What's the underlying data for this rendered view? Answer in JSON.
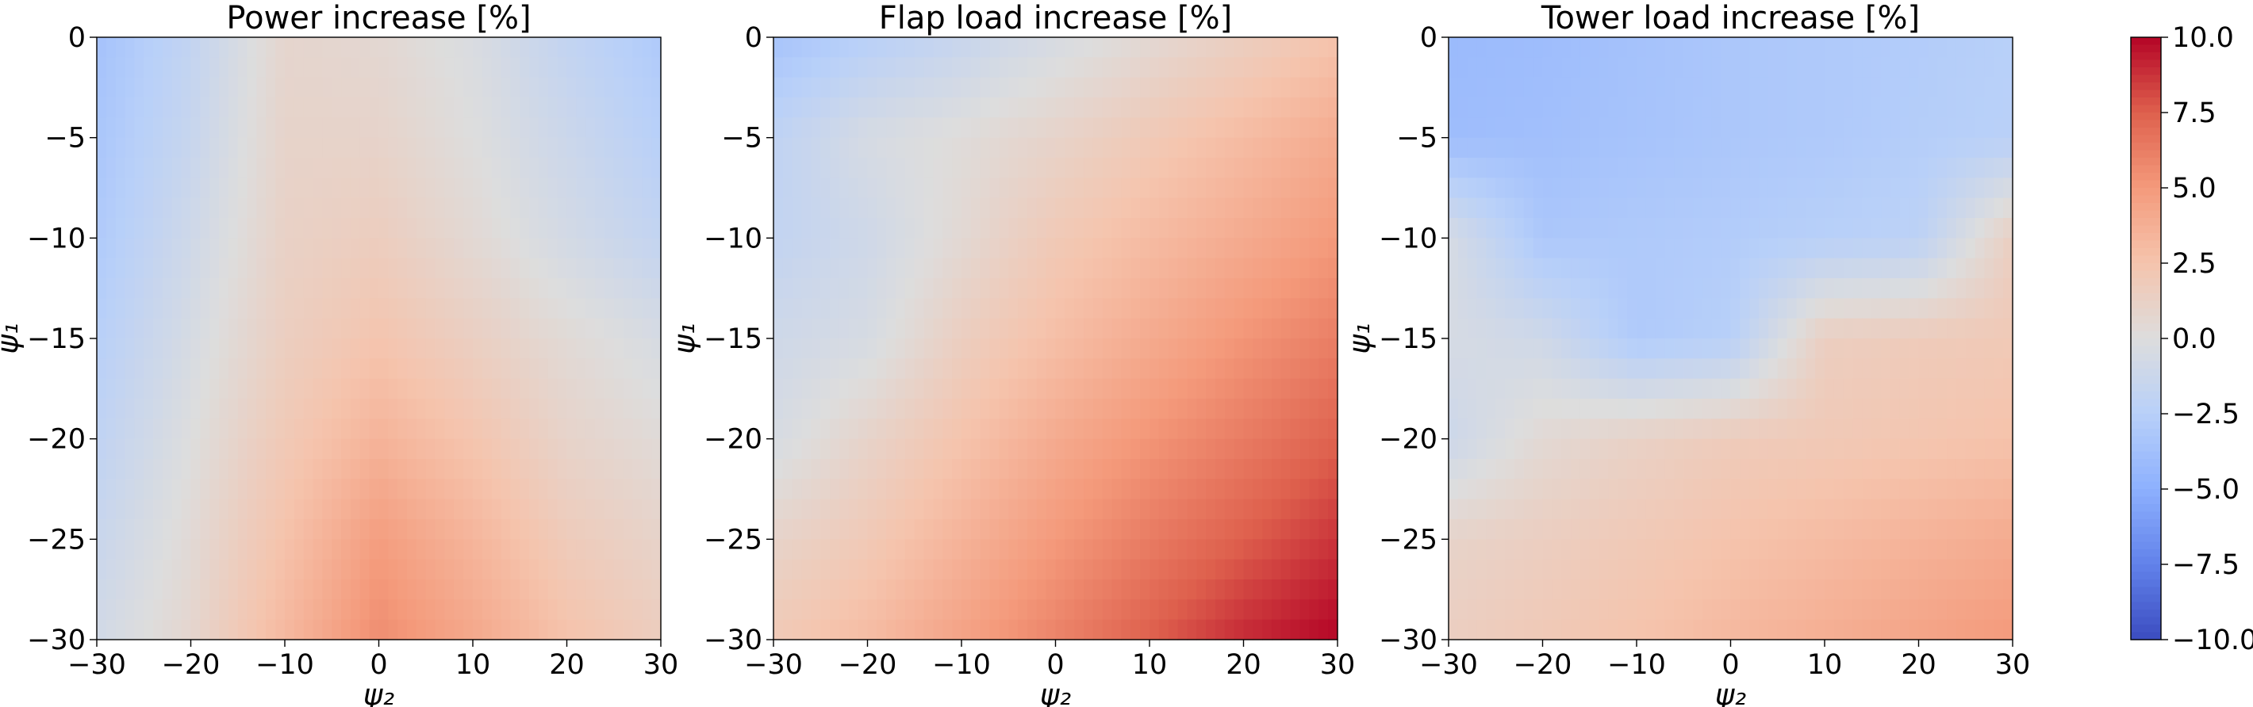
{
  "chart_data": [
    {
      "type": "heatmap",
      "title": "Power increase [%]",
      "xlabel": "ψ₂",
      "ylabel": "ψ₁",
      "xlim": [
        -30,
        30
      ],
      "ylim": [
        -30,
        0
      ],
      "xticks": [
        "−30",
        "−20",
        "−10",
        "0",
        "10",
        "20",
        "30"
      ],
      "yticks": [
        "0",
        "−5",
        "−10",
        "−15",
        "−20",
        "−25",
        "−30"
      ],
      "x": [
        -30,
        -20,
        -10,
        0,
        10,
        20,
        30
      ],
      "y": [
        0,
        -5,
        -10,
        -15,
        -20,
        -25,
        -30
      ],
      "z": [
        [
          -3.6,
          -1.8,
          0.8,
          0.6,
          -0.3,
          -1.8,
          -3.0
        ],
        [
          -3.3,
          -1.5,
          1.0,
          1.0,
          0.0,
          -1.2,
          -2.5
        ],
        [
          -3.0,
          -1.0,
          1.2,
          1.6,
          0.5,
          -0.7,
          -1.8
        ],
        [
          -2.5,
          -0.5,
          1.5,
          2.4,
          1.4,
          0.4,
          -0.5
        ],
        [
          -2.0,
          0.0,
          2.0,
          3.5,
          2.4,
          1.0,
          0.3
        ],
        [
          -1.4,
          0.4,
          2.6,
          4.8,
          3.4,
          1.8,
          1.0
        ],
        [
          -0.8,
          0.8,
          3.2,
          5.6,
          4.2,
          2.6,
          1.6
        ]
      ]
    },
    {
      "type": "heatmap",
      "title": "Flap load increase [%]",
      "xlabel": "ψ₂",
      "ylabel": "ψ₁",
      "xlim": [
        -30,
        30
      ],
      "ylim": [
        -30,
        0
      ],
      "xticks": [
        "−30",
        "−20",
        "−10",
        "0",
        "10",
        "20",
        "30"
      ],
      "yticks": [
        "0",
        "−5",
        "−10",
        "−15",
        "−20",
        "−25",
        "−30"
      ],
      "x": [
        -30,
        -20,
        -10,
        0,
        10,
        20,
        30
      ],
      "y": [
        0,
        -5,
        -10,
        -15,
        -20,
        -25,
        -30
      ],
      "z": [
        [
          -3.5,
          -2.5,
          -1.5,
          -0.5,
          0.5,
          1.5,
          2.5
        ],
        [
          -2.0,
          -0.5,
          0.2,
          1.0,
          2.0,
          3.0,
          4.0
        ],
        [
          -1.8,
          -1.0,
          0.5,
          2.0,
          3.0,
          4.0,
          5.0
        ],
        [
          -1.0,
          -0.5,
          1.5,
          2.8,
          4.0,
          5.2,
          6.2
        ],
        [
          -0.5,
          1.0,
          2.5,
          4.0,
          5.2,
          6.3,
          7.4
        ],
        [
          1.0,
          2.0,
          3.5,
          5.0,
          6.3,
          7.5,
          8.7
        ],
        [
          2.0,
          3.0,
          4.5,
          6.0,
          7.5,
          9.0,
          10.0
        ]
      ]
    },
    {
      "type": "heatmap",
      "title": "Tower load increase [%]",
      "xlabel": "ψ₂",
      "ylabel": "ψ₁",
      "xlim": [
        -30,
        30
      ],
      "ylim": [
        -30,
        0
      ],
      "xticks": [
        "−30",
        "−20",
        "−10",
        "0",
        "10",
        "20",
        "30"
      ],
      "yticks": [
        "0",
        "−5",
        "−10",
        "−15",
        "−20",
        "−25",
        "−30"
      ],
      "x": [
        -30,
        -20,
        -10,
        0,
        10,
        20,
        30
      ],
      "y": [
        0,
        -5,
        -10,
        -15,
        -20,
        -25,
        -30
      ],
      "z": [
        [
          -4.2,
          -4.0,
          -3.6,
          -3.2,
          -3.0,
          -2.8,
          -2.5
        ],
        [
          -4.0,
          -3.8,
          -3.5,
          -3.2,
          -3.0,
          -2.7,
          -2.4
        ],
        [
          -0.5,
          -3.2,
          -3.0,
          -2.8,
          -2.5,
          -2.2,
          1.5
        ],
        [
          -0.5,
          -1.0,
          -3.0,
          -2.5,
          1.5,
          1.8,
          2.0
        ],
        [
          -1.2,
          0.5,
          1.2,
          1.8,
          2.0,
          2.3,
          2.6
        ],
        [
          1.0,
          1.5,
          2.0,
          2.5,
          3.0,
          3.5,
          4.0
        ],
        [
          1.5,
          2.0,
          2.5,
          3.2,
          3.8,
          4.4,
          5.0
        ]
      ]
    }
  ],
  "colorbar": {
    "colormap": "coolwarm",
    "min": -10.0,
    "max": 10.0,
    "ticks": [
      "10.0",
      "7.5",
      "5.0",
      "2.5",
      "0.0",
      "−2.5",
      "−5.0",
      "−7.5",
      "−10.0"
    ]
  }
}
